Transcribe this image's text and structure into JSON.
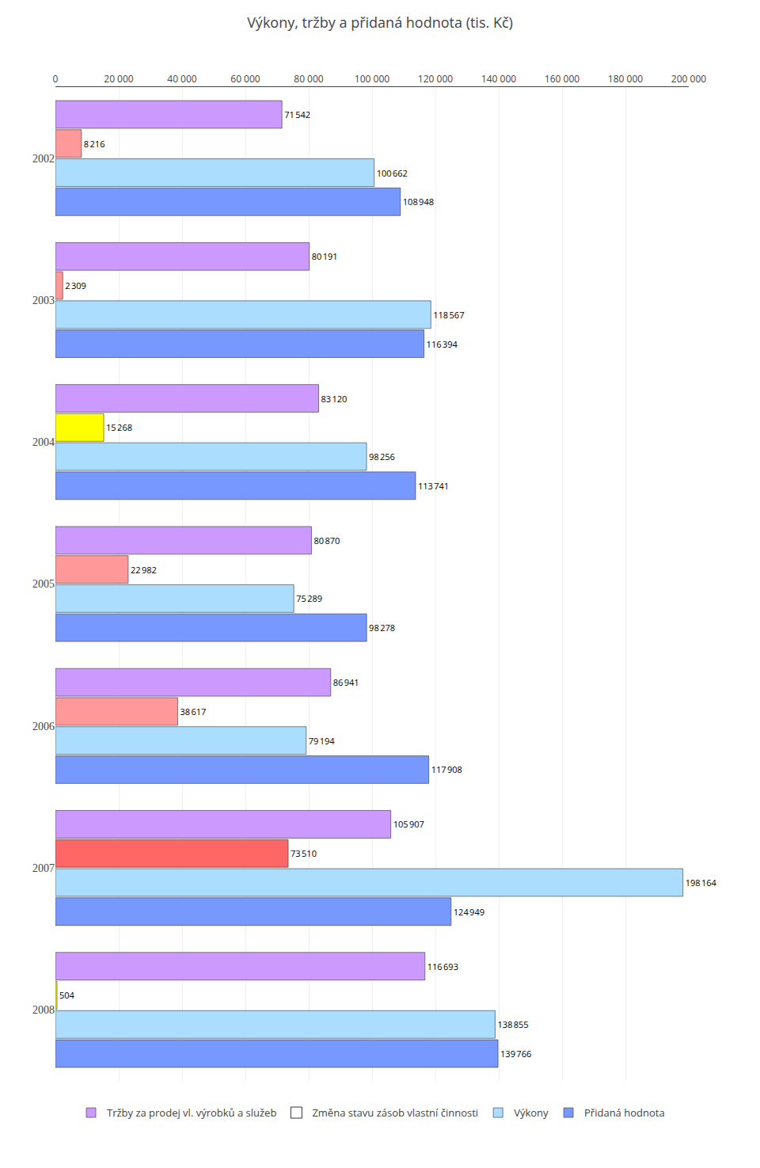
{
  "chart_data": {
    "type": "bar",
    "orientation": "horizontal",
    "title": "Výkony, tržby a přidaná hodnota (tis. Kč)",
    "categories": [
      "2002",
      "2003",
      "2004",
      "2005",
      "2006",
      "2007",
      "2008"
    ],
    "series": [
      {
        "name": "Tržby za prodej vl. výrobků a služeb",
        "color": "#cc99ff",
        "values": [
          71542,
          80191,
          83120,
          80870,
          86941,
          105907,
          116693
        ],
        "value_labels": [
          "71 542",
          "80 191",
          "83 120",
          "80 870",
          "86 941",
          "105 907",
          "116 693"
        ]
      },
      {
        "name": "Změna stavu zásob vlastní činnosti",
        "color": "#ffffff",
        "colors": [
          "#ff9999",
          "#ff9999",
          "#ffff00",
          "#ff9999",
          "#ff9999",
          "#ff6666",
          "#ffff00"
        ],
        "values": [
          8216,
          2309,
          15268,
          22982,
          38617,
          73510,
          504
        ],
        "value_labels": [
          "8 216",
          "2 309",
          "15 268",
          "22 982",
          "38 617",
          "73 510",
          "504"
        ]
      },
      {
        "name": "Výkony",
        "color": "#aaddff",
        "values": [
          100662,
          118567,
          98256,
          75289,
          79194,
          198164,
          138855
        ],
        "value_labels": [
          "100 662",
          "118 567",
          "98 256",
          "75 289",
          "79 194",
          "198 164",
          "138 855"
        ]
      },
      {
        "name": "Přidaná hodnota",
        "color": "#7799ff",
        "values": [
          108948,
          116394,
          113741,
          98278,
          117908,
          124949,
          139766
        ],
        "value_labels": [
          "108 948",
          "116 394",
          "113 741",
          "98 278",
          "117 908",
          "124 949",
          "139 766"
        ]
      }
    ],
    "xlim": [
      0,
      200000
    ],
    "xticks": [
      0,
      {
        "value": 20000,
        "label": "20 000"
      },
      {
        "value": 40000,
        "label": "40 000"
      },
      {
        "value": 60000,
        "label": "60 000"
      },
      {
        "value": 80000,
        "label": "80 000"
      },
      {
        "value": 100000,
        "label": "100 000"
      },
      {
        "value": 120000,
        "label": "120 000"
      },
      {
        "value": 140000,
        "label": "140 000"
      },
      {
        "value": 160000,
        "label": "160 000"
      },
      {
        "value": 180000,
        "label": "180 000"
      },
      {
        "value": 200000,
        "label": "200 000"
      }
    ],
    "grid": true,
    "legend": "bottom",
    "data_labels": true
  }
}
